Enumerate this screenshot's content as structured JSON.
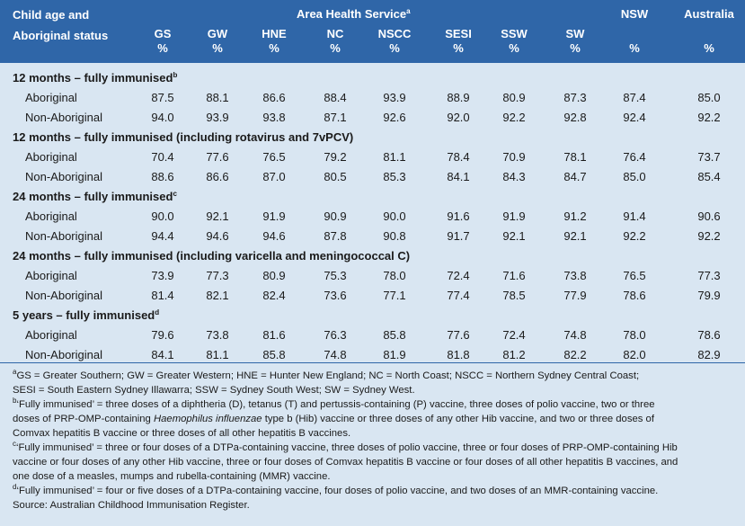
{
  "header": {
    "title_line1": "Child age and",
    "title_line2": "Aboriginal status",
    "area_label": "Area Health Service",
    "area_sup": "a",
    "columns": [
      {
        "name": "GS",
        "unit": "%"
      },
      {
        "name": "GW",
        "unit": "%"
      },
      {
        "name": "HNE",
        "unit": "%"
      },
      {
        "name": "NC",
        "unit": "%"
      },
      {
        "name": "NSCC",
        "unit": "%"
      },
      {
        "name": "SESI",
        "unit": "%"
      },
      {
        "name": "SSW",
        "unit": "%"
      },
      {
        "name": "SW",
        "unit": "%"
      },
      {
        "name": "NSW",
        "unit": "%"
      },
      {
        "name": "Australia",
        "unit": "%"
      }
    ]
  },
  "sections": [
    {
      "title": "12 months – fully immunised",
      "sup": "b",
      "rows": [
        {
          "label": "Aboriginal",
          "values": [
            "87.5",
            "88.1",
            "86.6",
            "88.4",
            "93.9",
            "88.9",
            "80.9",
            "87.3",
            "87.4",
            "85.0"
          ]
        },
        {
          "label": "Non-Aboriginal",
          "values": [
            "94.0",
            "93.9",
            "93.8",
            "87.1",
            "92.6",
            "92.0",
            "92.2",
            "92.8",
            "92.4",
            "92.2"
          ]
        }
      ]
    },
    {
      "title": "12 months – fully immunised (including rotavirus and 7vPCV)",
      "sup": "",
      "rows": [
        {
          "label": "Aboriginal",
          "values": [
            "70.4",
            "77.6",
            "76.5",
            "79.2",
            "81.1",
            "78.4",
            "70.9",
            "78.1",
            "76.4",
            "73.7"
          ]
        },
        {
          "label": "Non-Aboriginal",
          "values": [
            "88.6",
            "86.6",
            "87.0",
            "80.5",
            "85.3",
            "84.1",
            "84.3",
            "84.7",
            "85.0",
            "85.4"
          ]
        }
      ]
    },
    {
      "title": "24 months – fully immunised",
      "sup": "c",
      "rows": [
        {
          "label": "Aboriginal",
          "values": [
            "90.0",
            "92.1",
            "91.9",
            "90.9",
            "90.0",
            "91.6",
            "91.9",
            "91.2",
            "91.4",
            "90.6"
          ]
        },
        {
          "label": "Non-Aboriginal",
          "values": [
            "94.4",
            "94.6",
            "94.6",
            "87.8",
            "90.8",
            "91.7",
            "92.1",
            "92.1",
            "92.2",
            "92.2"
          ]
        }
      ]
    },
    {
      "title": "24 months – fully immunised (including varicella and meningococcal C)",
      "sup": "",
      "rows": [
        {
          "label": "Aboriginal",
          "values": [
            "73.9",
            "77.3",
            "80.9",
            "75.3",
            "78.0",
            "72.4",
            "71.6",
            "73.8",
            "76.5",
            "77.3"
          ]
        },
        {
          "label": "Non-Aboriginal",
          "values": [
            "81.4",
            "82.1",
            "82.4",
            "73.6",
            "77.1",
            "77.4",
            "78.5",
            "77.9",
            "78.6",
            "79.9"
          ]
        }
      ]
    },
    {
      "title": "5 years – fully immunised",
      "sup": "d",
      "rows": [
        {
          "label": "Aboriginal",
          "values": [
            "79.6",
            "73.8",
            "81.6",
            "76.3",
            "85.8",
            "77.6",
            "72.4",
            "74.8",
            "78.0",
            "78.6"
          ]
        },
        {
          "label": "Non-Aboriginal",
          "values": [
            "84.1",
            "81.1",
            "85.8",
            "74.8",
            "81.9",
            "81.8",
            "81.2",
            "82.2",
            "82.0",
            "82.9"
          ]
        }
      ]
    }
  ],
  "notes": {
    "a_sup": "a",
    "a_text": "GS = Greater Southern; GW = Greater Western; HNE = Hunter New England; NC = North Coast; NSCC = Northern Sydney Central Coast;",
    "a_text2": "SESI = South Eastern Sydney Illawarra; SSW = Sydney South West; SW = Sydney West.",
    "b_sup": "b",
    "b_text1": "‘Fully immunised’ = three doses of a diphtheria (D), tetanus (T) and pertussis-containing (P) vaccine, three doses of polio vaccine, two or three",
    "b_text2a": "doses of PRP-OMP-containing ",
    "b_text2_italic": "Haemophilus influenzae",
    "b_text2b": " type b (Hib) vaccine or three doses of any other Hib vaccine, and two or three doses of",
    "b_text3": "Comvax hepatitis B vaccine or three doses of all other hepatitis B vaccines.",
    "c_sup": "c",
    "c_text1": "‘Fully immunised’ = three or four doses of a DTPa-containing vaccine, three doses of polio vaccine, three or four doses of PRP-OMP-containing Hib",
    "c_text2": "vaccine or four doses of any other Hib vaccine, three or four doses of Comvax hepatitis B vaccine or four doses of all other hepatitis B vaccines, and",
    "c_text3": "one dose of a measles, mumps and rubella-containing (MMR) vaccine.",
    "d_sup": "d",
    "d_text": "‘Fully immunised’ = four or five doses of a DTPa-containing vaccine, four doses of polio vaccine, and two doses of an MMR-containing vaccine.",
    "source": "Source: Australian Childhood Immunisation Register."
  }
}
